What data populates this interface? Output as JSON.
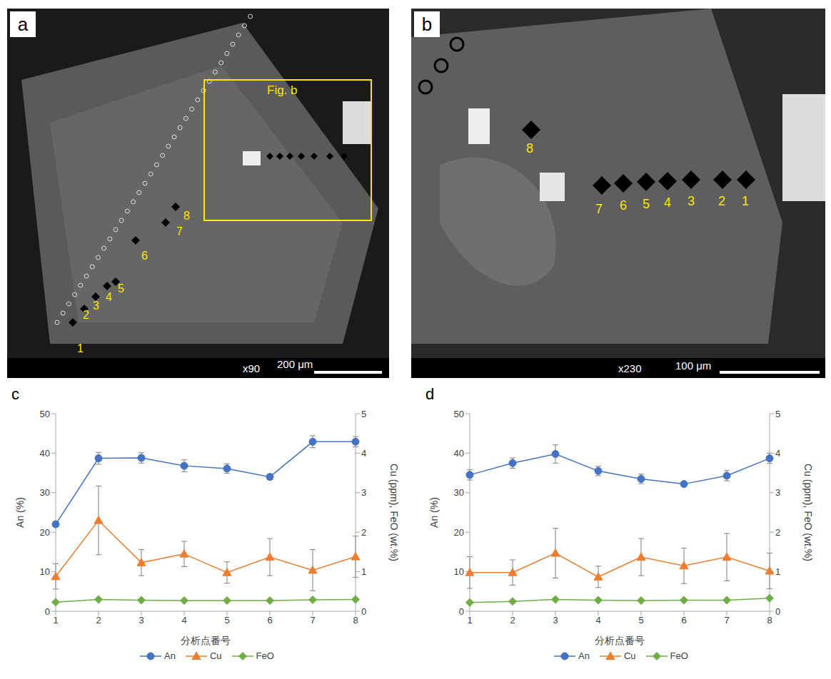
{
  "images": [
    {
      "panel": "a",
      "box_label": "Fig. b",
      "points": [
        1,
        2,
        3,
        4,
        5,
        6,
        7,
        8
      ],
      "magnification": "x90",
      "scale_bar": "200 μm"
    },
    {
      "panel": "b",
      "points": [
        1,
        2,
        3,
        4,
        5,
        6,
        7,
        8
      ],
      "magnification": "x230",
      "scale_bar": "100 μm"
    }
  ],
  "chart_data": [
    {
      "type": "line",
      "panel": "c",
      "categories": [
        "1",
        "2",
        "3",
        "4",
        "5",
        "6",
        "7",
        "8"
      ],
      "x_label": "分析点番号",
      "y_label": "An (%)",
      "y2_label": "Cu (ppm), FeO (wt.%)",
      "ylim": [
        0,
        50
      ],
      "yticks": [
        0,
        10,
        20,
        30,
        40,
        50
      ],
      "y2lim": [
        0,
        5
      ],
      "y2ticks": [
        0,
        1,
        2,
        3,
        4,
        5
      ],
      "grid": false,
      "legend": "bottom",
      "series": [
        {
          "name": "An",
          "color": "#4472c4",
          "marker": "circle",
          "values": [
            22,
            38.7,
            38.8,
            36.8,
            36.1,
            34,
            42.9,
            42.9
          ],
          "errors": [
            0.5,
            1.5,
            1.3,
            1.5,
            1.2,
            0.7,
            1.5,
            1.3
          ]
        },
        {
          "name": "Cu",
          "color": "#ed7d31",
          "marker": "triangle",
          "axis": "y2",
          "values": [
            0.88,
            2.3,
            1.23,
            1.45,
            0.98,
            1.37,
            1.04,
            1.38
          ],
          "errors": [
            0.32,
            0.87,
            0.33,
            0.32,
            0.27,
            0.47,
            0.52,
            0.52
          ]
        },
        {
          "name": "FeO",
          "color": "#70ad47",
          "marker": "diamond",
          "axis": "y2",
          "values": [
            0.23,
            0.3,
            0.28,
            0.27,
            0.27,
            0.27,
            0.29,
            0.3
          ]
        }
      ]
    },
    {
      "type": "line",
      "panel": "d",
      "categories": [
        "1",
        "2",
        "3",
        "4",
        "5",
        "6",
        "7",
        "8"
      ],
      "x_label": "分析点番号",
      "y_label": "An (%)",
      "y2_label": "Cu (ppm), FeO (wt.%)",
      "ylim": [
        0,
        50
      ],
      "yticks": [
        0,
        10,
        20,
        30,
        40,
        50
      ],
      "y2lim": [
        0,
        5
      ],
      "y2ticks": [
        0,
        1,
        2,
        3,
        4,
        5
      ],
      "grid": false,
      "legend": "bottom",
      "series": [
        {
          "name": "An",
          "color": "#4472c4",
          "marker": "circle",
          "values": [
            34.5,
            37.5,
            39.8,
            35.5,
            33.5,
            32.2,
            34.3,
            38.7
          ],
          "errors": [
            1.3,
            1.3,
            2.3,
            1.2,
            1.2,
            0.5,
            1.3,
            1.3
          ]
        },
        {
          "name": "Cu",
          "color": "#ed7d31",
          "marker": "triangle",
          "axis": "y2",
          "values": [
            0.98,
            0.98,
            1.47,
            0.87,
            1.37,
            1.15,
            1.37,
            1.02
          ],
          "errors": [
            0.4,
            0.32,
            0.63,
            0.27,
            0.47,
            0.45,
            0.6,
            0.45
          ]
        },
        {
          "name": "FeO",
          "color": "#70ad47",
          "marker": "diamond",
          "axis": "y2",
          "values": [
            0.22,
            0.25,
            0.3,
            0.28,
            0.27,
            0.28,
            0.28,
            0.33
          ]
        }
      ]
    }
  ]
}
